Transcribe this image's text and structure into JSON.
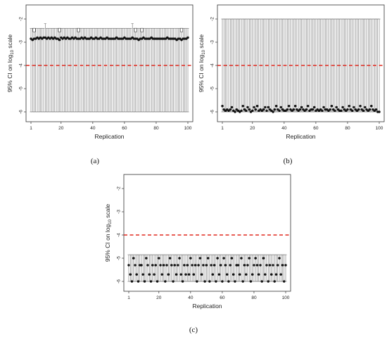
{
  "chart_data": [
    {
      "id": "a",
      "caption": "(a)",
      "type": "scatter",
      "xlabel": "Replication",
      "ylabel": "95% CI on log",
      "ylabel_sub": "10",
      "ylabel_tail": " scale",
      "xlim": [
        1,
        100
      ],
      "ylim": [
        -6,
        -2
      ],
      "xticks": [
        "1",
        "20",
        "40",
        "60",
        "80",
        "100"
      ],
      "yticks": [
        "-2",
        "-3",
        "-4",
        "-5",
        "-6"
      ],
      "reference_line": -4,
      "reference_color": "#e0281e",
      "points_seq": [
        -2.85,
        -2.9,
        -2.85,
        -2.85,
        -2.8,
        -2.85,
        -2.8,
        -2.85,
        -2.8,
        -2.8,
        -2.85,
        -2.8,
        -2.85,
        -2.8,
        -2.85,
        -2.8,
        -2.85,
        -2.85,
        -2.9,
        -2.8,
        -2.85,
        -2.8,
        -2.85,
        -2.8,
        -2.85,
        -2.85,
        -2.8,
        -2.85,
        -2.8,
        -2.85,
        -2.85,
        -2.85,
        -2.8,
        -2.85,
        -2.8,
        -2.85,
        -2.85,
        -2.85,
        -2.8,
        -2.85,
        -2.85,
        -2.8,
        -2.85,
        -2.85,
        -2.8,
        -2.85,
        -2.85,
        -2.85,
        -2.8,
        -2.85,
        -2.85,
        -2.85,
        -2.85,
        -2.85,
        -2.8,
        -2.85,
        -2.85,
        -2.85,
        -2.85,
        -2.8,
        -2.85,
        -2.85,
        -2.85,
        -2.85,
        -2.8,
        -2.85,
        -2.85,
        -2.85,
        -2.9,
        -2.85,
        -2.85,
        -2.8,
        -2.85,
        -2.85,
        -2.85,
        -2.85,
        -2.8,
        -2.85,
        -2.85,
        -2.85,
        -2.85,
        -2.85,
        -2.85,
        -2.85,
        -2.85,
        -2.85,
        -2.8,
        -2.85,
        -2.85,
        -2.85,
        -2.85,
        -2.85,
        -2.9,
        -2.85,
        -2.85,
        -2.9,
        -2.85,
        -2.85,
        -2.85,
        -2.8
      ],
      "upper_default": -2.4,
      "upper_overrides": {
        "10": -2.2,
        "65": -2.2
      },
      "box_markers": [
        3,
        19,
        31,
        67,
        71,
        96
      ],
      "lower": -6
    },
    {
      "id": "b",
      "caption": "(b)",
      "type": "scatter",
      "xlabel": "Replication",
      "ylabel": "95% CI on log",
      "ylabel_sub": "10",
      "ylabel_tail": " scale",
      "xlim": [
        1,
        100
      ],
      "ylim": [
        -6,
        -2
      ],
      "xticks": [
        "1",
        "20",
        "40",
        "60",
        "80",
        "100"
      ],
      "yticks": [
        "-2",
        "-3",
        "-4",
        "-5",
        "-6"
      ],
      "reference_line": -4,
      "reference_color": "#e0281e",
      "points_seq": [
        -5.75,
        -5.9,
        -5.95,
        -5.9,
        -5.95,
        -5.9,
        -5.8,
        -5.95,
        -6,
        -5.9,
        -5.95,
        -6,
        -5.95,
        -5.75,
        -5.9,
        -5.95,
        -5.8,
        -5.9,
        -6,
        -5.95,
        -5.8,
        -5.9,
        -5.75,
        -5.95,
        -5.9,
        -5.95,
        -5.9,
        -5.8,
        -5.95,
        -5.8,
        -5.9,
        -5.95,
        -6,
        -5.9,
        -5.75,
        -5.9,
        -5.95,
        -5.8,
        -5.9,
        -5.95,
        -5.95,
        -5.9,
        -5.75,
        -5.9,
        -5.95,
        -5.9,
        -5.75,
        -5.9,
        -5.95,
        -5.9,
        -5.8,
        -5.9,
        -5.95,
        -5.9,
        -5.75,
        -5.95,
        -5.9,
        -5.9,
        -5.8,
        -5.95,
        -5.9,
        -5.95,
        -5.9,
        -5.95,
        -5.8,
        -5.9,
        -5.9,
        -5.95,
        -5.9,
        -5.75,
        -5.9,
        -5.95,
        -5.8,
        -5.9,
        -5.95,
        -5.95,
        -5.8,
        -5.9,
        -5.95,
        -5.9,
        -5.75,
        -5.9,
        -5.95,
        -5.8,
        -5.9,
        -5.95,
        -5.9,
        -5.75,
        -5.9,
        -5.95,
        -5.8,
        -5.9,
        -5.95,
        -5.9,
        -5.75,
        -5.9,
        -5.95,
        -5.9,
        -6,
        -6
      ],
      "upper_default": -2,
      "upper_overrides": {},
      "box_markers": [],
      "lower": -6
    },
    {
      "id": "c",
      "caption": "(c)",
      "type": "scatter",
      "xlabel": "Replication",
      "ylabel": "95% CI on log",
      "ylabel_sub": "10",
      "ylabel_tail": " scale",
      "xlim": [
        1,
        100
      ],
      "ylim": [
        -6,
        -2
      ],
      "xticks": [
        "1",
        "20",
        "40",
        "60",
        "80",
        "100"
      ],
      "yticks": [
        "-2",
        "-3",
        "-4",
        "-5",
        "-6"
      ],
      "reference_line": -4,
      "reference_color": "#e0281e",
      "points_seq": [
        -5.3,
        -5.7,
        -6,
        -5,
        -5.3,
        -5.7,
        -6,
        -5.3,
        -5.3,
        -5.7,
        -6,
        -5,
        -5.3,
        -5.7,
        -6,
        -5.3,
        -5.7,
        -5.3,
        -6,
        -5,
        -5.3,
        -5.7,
        -5.3,
        -6,
        -5.3,
        -5.7,
        -5,
        -5.3,
        -6,
        -5.3,
        -5.7,
        -5.3,
        -5,
        -5.7,
        -6,
        -5.3,
        -5.7,
        -5.3,
        -5.7,
        -5,
        -5.3,
        -5.7,
        -5.3,
        -6,
        -5.3,
        -5,
        -5.7,
        -5.3,
        -6,
        -5.3,
        -5,
        -6,
        -5.3,
        -5.7,
        -5.3,
        -6,
        -5,
        -5.7,
        -5.3,
        -6,
        -5,
        -5.3,
        -5.7,
        -6,
        -5.3,
        -5,
        -5.7,
        -6,
        -5.3,
        -5.3,
        -5.7,
        -5,
        -6,
        -5.3,
        -5.7,
        -5.3,
        -5,
        -6,
        -5.7,
        -5.3,
        -5,
        -5.3,
        -5.7,
        -5.3,
        -6,
        -5,
        -5.7,
        -5.3,
        -6,
        -5.3,
        -5.7,
        -5.3,
        -6,
        -5.7,
        -5.3,
        -5,
        -5.7,
        -5.3,
        -6,
        -5.3
      ],
      "upper_default": -4.85,
      "upper_overrides": {},
      "box_markers": [],
      "lower": -6
    }
  ]
}
